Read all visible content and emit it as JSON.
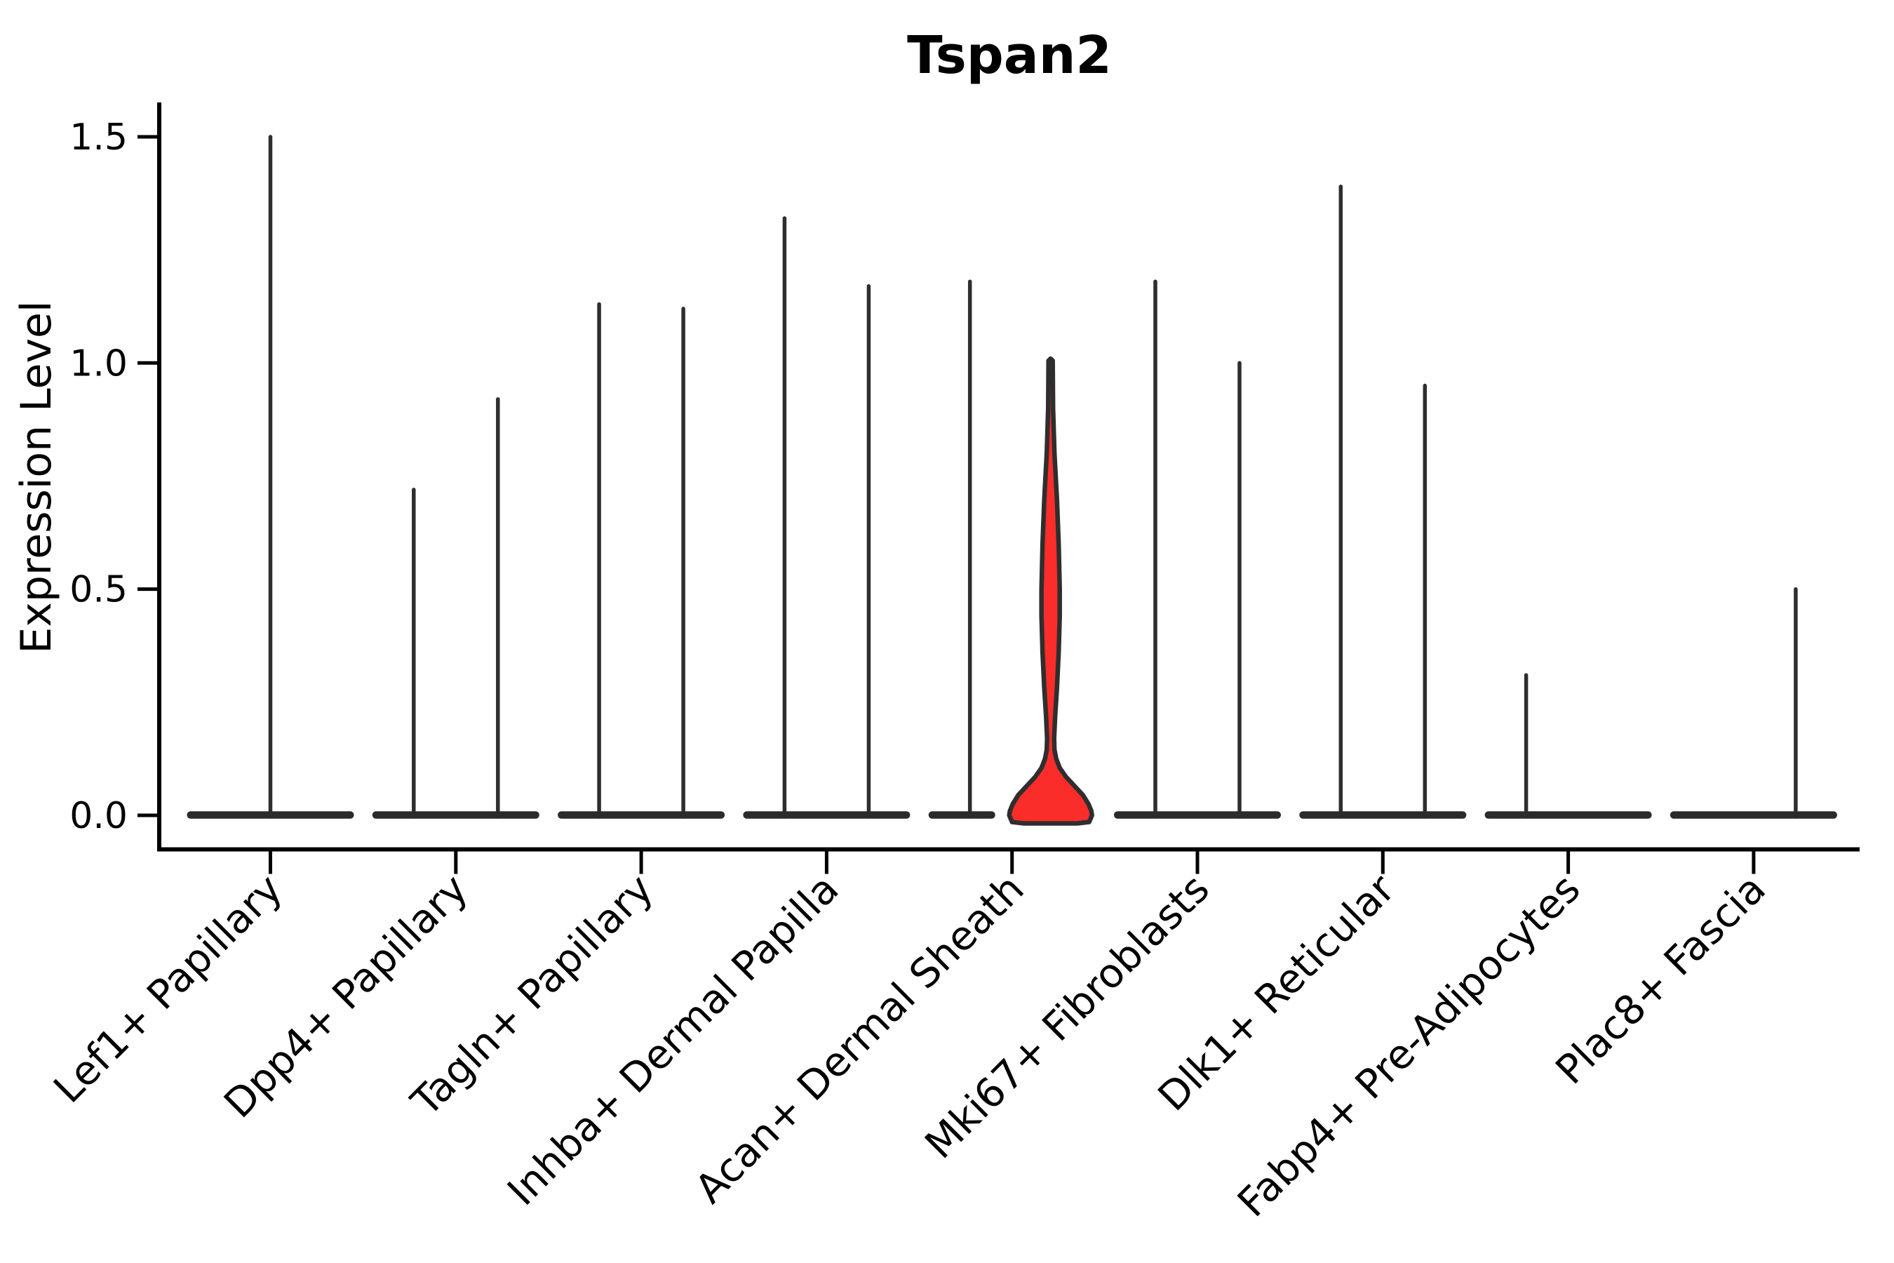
{
  "title": "Tspan2",
  "ylabel": "Expression Level",
  "chart_data": {
    "type": "violin",
    "title": "Tspan2",
    "xlabel": "",
    "ylabel": "Expression Level",
    "grid": false,
    "legend": "none",
    "ylim": [
      -0.075,
      1.58
    ],
    "yticks": [
      {
        "value": 0.0,
        "label": "0.0"
      },
      {
        "value": 0.5,
        "label": "0.5"
      },
      {
        "value": 1.0,
        "label": "1.0"
      },
      {
        "value": 1.5,
        "label": "1.5"
      }
    ],
    "categories": [
      {
        "label": "Lef1+ Papillary",
        "violins": [
          {
            "side": "center",
            "max_expression": 1.5
          }
        ]
      },
      {
        "label": "Dpp4+ Papillary",
        "violins": [
          {
            "side": "left",
            "max_expression": 0.72
          },
          {
            "side": "right",
            "max_expression": 0.92
          }
        ]
      },
      {
        "label": "Tagln+ Papillary",
        "violins": [
          {
            "side": "left",
            "max_expression": 1.13
          },
          {
            "side": "right",
            "max_expression": 1.12
          }
        ]
      },
      {
        "label": "Inhba+ Dermal Papilla",
        "violins": [
          {
            "side": "left",
            "max_expression": 1.32
          },
          {
            "side": "right",
            "max_expression": 1.17
          }
        ]
      },
      {
        "label": "Acan+ Dermal Sheath",
        "violins": [
          {
            "side": "left",
            "max_expression": 1.18
          },
          {
            "side": "right",
            "max_expression": 1.0,
            "highlight": true
          }
        ]
      },
      {
        "label": "Mki67+ Fibroblasts",
        "violins": [
          {
            "side": "left",
            "max_expression": 1.18
          },
          {
            "side": "right",
            "max_expression": 1.0
          }
        ]
      },
      {
        "label": "Dlk1+ Reticular",
        "violins": [
          {
            "side": "left",
            "max_expression": 1.39
          },
          {
            "side": "right",
            "max_expression": 0.95
          }
        ]
      },
      {
        "label": "Fabp4+ Pre-Adipocytes",
        "violins": [
          {
            "side": "left",
            "max_expression": 0.31
          }
        ]
      },
      {
        "label": "Plac8+ Fascia",
        "violins": [
          {
            "side": "right",
            "max_expression": 0.5
          }
        ]
      }
    ],
    "highlight_violin": {
      "category": "Acan+ Dermal Sheath",
      "max_expression": 1.0,
      "density_profile": [
        [
          1.005,
          3.0
        ],
        [
          0.9,
          3.5
        ],
        [
          0.8,
          5.5
        ],
        [
          0.7,
          9.0
        ],
        [
          0.6,
          11.5
        ],
        [
          0.5,
          13.0
        ],
        [
          0.44,
          13.0
        ],
        [
          0.36,
          11.5
        ],
        [
          0.28,
          9.0
        ],
        [
          0.22,
          6.5
        ],
        [
          0.17,
          5.0
        ],
        [
          0.145,
          5.5
        ],
        [
          0.125,
          8.0
        ],
        [
          0.105,
          13.0
        ],
        [
          0.085,
          22.0
        ],
        [
          0.065,
          34.0
        ],
        [
          0.045,
          46.0
        ],
        [
          0.025,
          54.0
        ],
        [
          0.01,
          58.0
        ],
        [
          0.0,
          59.0
        ]
      ]
    },
    "colors": {
      "violin_outline": "#2e2e2e",
      "zero_density_bar": "#2b2b2b",
      "highlight_fill": "#FA2D2A",
      "axis": "#000000",
      "text": "#000000",
      "background": "#ffffff"
    }
  }
}
